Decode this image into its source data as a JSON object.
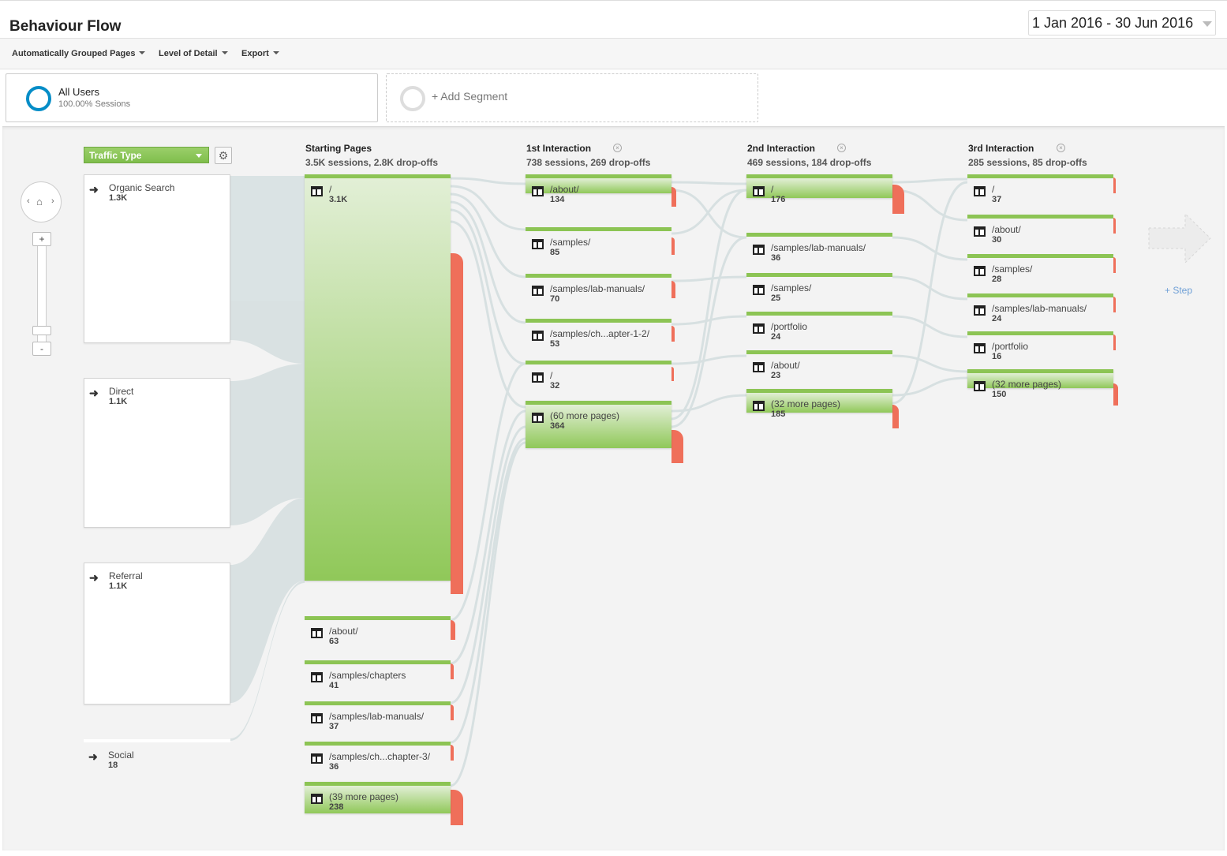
{
  "header": {
    "title": "Behaviour Flow",
    "date_range": "1 Jan 2016 - 30 Jun 2016"
  },
  "toolbar": {
    "grouped": "Automatically Grouped Pages",
    "detail": "Level of Detail",
    "export": "Export"
  },
  "segments": {
    "all_users_name": "All Users",
    "all_users_sessions": "100.00% Sessions",
    "add_segment": "+ Add Segment"
  },
  "controls": {
    "traffic_type": "Traffic Type",
    "zoom_in": "+",
    "zoom_out": "-",
    "add_step": "+ Step"
  },
  "sources": [
    {
      "name": "Organic Search",
      "value": "1.3K"
    },
    {
      "name": "Direct",
      "value": "1.1K"
    },
    {
      "name": "Referral",
      "value": "1.1K"
    },
    {
      "name": "Social",
      "value": "18"
    }
  ],
  "columns": [
    {
      "title": "Starting Pages",
      "summary": "3.5K sessions, 2.8K drop-offs"
    },
    {
      "title": "1st Interaction",
      "summary": "738 sessions, 269 drop-offs"
    },
    {
      "title": "2nd Interaction",
      "summary": "469 sessions, 184 drop-offs"
    },
    {
      "title": "3rd Interaction",
      "summary": "285 sessions, 85 drop-offs"
    }
  ],
  "starting_pages": [
    {
      "label": "/",
      "value": "3.1K"
    },
    {
      "label": "/about/",
      "value": "63"
    },
    {
      "label": "/samples/chapters",
      "value": "41"
    },
    {
      "label": "/samples/lab-manuals/",
      "value": "37"
    },
    {
      "label": "/samples/ch...chapter-3/",
      "value": "36"
    },
    {
      "label": "(39 more pages)",
      "value": "238"
    }
  ],
  "interaction_1": [
    {
      "label": "/about/",
      "value": "134"
    },
    {
      "label": "/samples/",
      "value": "85"
    },
    {
      "label": "/samples/lab-manuals/",
      "value": "70"
    },
    {
      "label": "/samples/ch...apter-1-2/",
      "value": "53"
    },
    {
      "label": "/",
      "value": "32"
    },
    {
      "label": "(60 more pages)",
      "value": "364"
    }
  ],
  "interaction_2": [
    {
      "label": "/",
      "value": "176"
    },
    {
      "label": "/samples/lab-manuals/",
      "value": "36"
    },
    {
      "label": "/samples/",
      "value": "25"
    },
    {
      "label": "/portfolio",
      "value": "24"
    },
    {
      "label": "/about/",
      "value": "23"
    },
    {
      "label": "(32 more pages)",
      "value": "185"
    }
  ],
  "interaction_3": [
    {
      "label": "/",
      "value": "37"
    },
    {
      "label": "/about/",
      "value": "30"
    },
    {
      "label": "/samples/",
      "value": "28"
    },
    {
      "label": "/samples/lab-manuals/",
      "value": "24"
    },
    {
      "label": "/portfolio",
      "value": "16"
    },
    {
      "label": "(32 more pages)",
      "value": "150"
    }
  ],
  "colors": {
    "node_green": "#8cc454",
    "dropoff_red": "#ef6f5a",
    "link_grey": "#d5dfe0",
    "segment_blue": "#058dc7"
  }
}
